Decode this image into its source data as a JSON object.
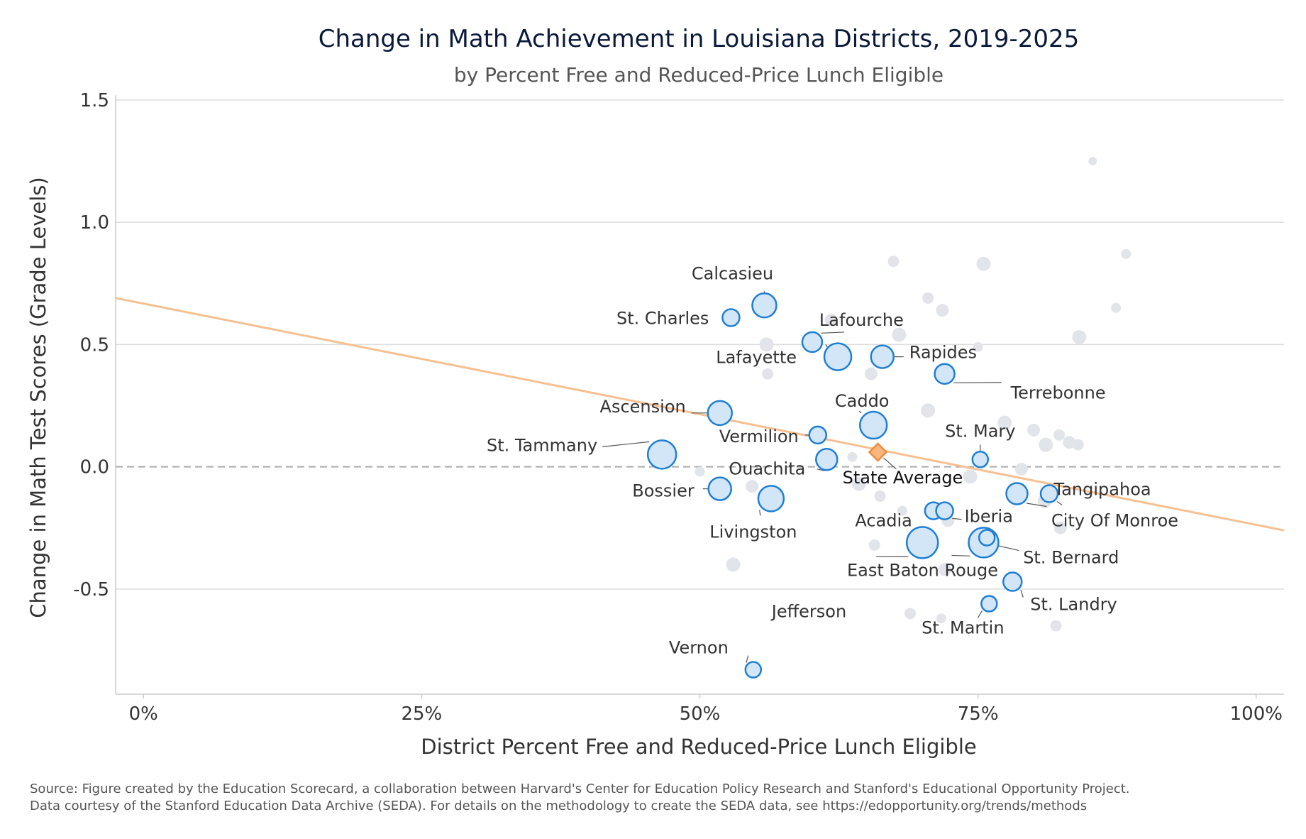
{
  "chart_data": {
    "type": "scatter",
    "title": "Change in Math Achievement in Louisiana Districts, 2019-2025",
    "subtitle": "by Percent Free and Reduced-Price Lunch Eligible",
    "xlabel": "District Percent Free and Reduced-Price Lunch Eligible",
    "ylabel": "Change in Math Test Scores (Grade Levels)",
    "xlim": [
      -0.025,
      1.025
    ],
    "ylim": [
      -0.93,
      1.52
    ],
    "x_ticks": [
      0,
      0.25,
      0.5,
      0.75,
      1.0
    ],
    "x_tick_labels": [
      "0%",
      "25%",
      "50%",
      "75%",
      "100%"
    ],
    "y_ticks": [
      1.5,
      1.0,
      0.5,
      0.0,
      -0.5
    ],
    "y_tick_labels": [
      "1.5",
      "1.0",
      "0.5",
      "0.0",
      "-0.5"
    ],
    "grid": "horizontal",
    "reference_line_y": 0,
    "trend_line": {
      "x": [
        -0.025,
        1.025
      ],
      "y": [
        0.69,
        -0.26
      ],
      "color": "#f6c092"
    },
    "colors": {
      "highlight_fill": "#d3e6f7",
      "highlight_stroke": "#1f7fd4",
      "background_point": "#e1e5ea",
      "state_marker": "#f08b3b"
    },
    "state_average": {
      "label": "State Average",
      "x": 0.66,
      "y": 0.06
    },
    "highlighted": [
      {
        "name": "Calcasieu",
        "x": 0.558,
        "y": 0.66,
        "size": 17
      },
      {
        "name": "St. Charles",
        "x": 0.528,
        "y": 0.61,
        "size": 12
      },
      {
        "name": "Lafourche",
        "x": 0.601,
        "y": 0.51,
        "size": 14
      },
      {
        "name": "Lafayette",
        "x": 0.624,
        "y": 0.45,
        "size": 19
      },
      {
        "name": "Rapides",
        "x": 0.664,
        "y": 0.45,
        "size": 16
      },
      {
        "name": "Terrebonne",
        "x": 0.72,
        "y": 0.38,
        "size": 14
      },
      {
        "name": "Ascension",
        "x": 0.518,
        "y": 0.22,
        "size": 17
      },
      {
        "name": "Caddo",
        "x": 0.656,
        "y": 0.17,
        "size": 19
      },
      {
        "name": "Vermilion",
        "x": 0.606,
        "y": 0.13,
        "size": 12
      },
      {
        "name": "St. Tammany",
        "x": 0.466,
        "y": 0.05,
        "size": 20
      },
      {
        "name": "St. Mary",
        "x": 0.752,
        "y": 0.03,
        "size": 11
      },
      {
        "name": "Ouachita",
        "x": 0.614,
        "y": 0.03,
        "size": 15
      },
      {
        "name": "Bossier",
        "x": 0.518,
        "y": -0.09,
        "size": 16
      },
      {
        "name": "Livingston",
        "x": 0.564,
        "y": -0.13,
        "size": 18
      },
      {
        "name": "Tangipahoa",
        "x": 0.785,
        "y": -0.11,
        "size": 15
      },
      {
        "name": "City Of Monroe",
        "x": 0.814,
        "y": -0.11,
        "size": 12
      },
      {
        "name": "Acadia",
        "x": 0.71,
        "y": -0.18,
        "size": 12
      },
      {
        "name": "Iberia",
        "x": 0.72,
        "y": -0.18,
        "size": 12
      },
      {
        "name": "East Baton Rouge",
        "x": 0.755,
        "y": -0.31,
        "size": 21
      },
      {
        "name": "St. Bernard",
        "x": 0.758,
        "y": -0.29,
        "size": 11
      },
      {
        "name": "Jefferson",
        "x": 0.7,
        "y": -0.31,
        "size": 22
      },
      {
        "name": "St. Landry",
        "x": 0.781,
        "y": -0.47,
        "size": 13
      },
      {
        "name": "St. Martin",
        "x": 0.76,
        "y": -0.56,
        "size": 11
      },
      {
        "name": "Vernon",
        "x": 0.548,
        "y": -0.83,
        "size": 11
      }
    ],
    "others": [
      {
        "x": 0.853,
        "y": 1.25,
        "size": 6
      },
      {
        "x": 0.883,
        "y": 0.87,
        "size": 7
      },
      {
        "x": 0.674,
        "y": 0.84,
        "size": 8
      },
      {
        "x": 0.755,
        "y": 0.83,
        "size": 10
      },
      {
        "x": 0.705,
        "y": 0.69,
        "size": 8
      },
      {
        "x": 0.718,
        "y": 0.64,
        "size": 9
      },
      {
        "x": 0.874,
        "y": 0.65,
        "size": 7
      },
      {
        "x": 0.618,
        "y": 0.6,
        "size": 9
      },
      {
        "x": 0.679,
        "y": 0.54,
        "size": 10
      },
      {
        "x": 0.841,
        "y": 0.53,
        "size": 10
      },
      {
        "x": 0.56,
        "y": 0.5,
        "size": 10
      },
      {
        "x": 0.75,
        "y": 0.49,
        "size": 7
      },
      {
        "x": 0.561,
        "y": 0.38,
        "size": 8
      },
      {
        "x": 0.654,
        "y": 0.38,
        "size": 9
      },
      {
        "x": 0.705,
        "y": 0.23,
        "size": 10
      },
      {
        "x": 0.774,
        "y": 0.18,
        "size": 10
      },
      {
        "x": 0.8,
        "y": 0.15,
        "size": 9
      },
      {
        "x": 0.823,
        "y": 0.13,
        "size": 8
      },
      {
        "x": 0.811,
        "y": 0.09,
        "size": 10
      },
      {
        "x": 0.832,
        "y": 0.1,
        "size": 9
      },
      {
        "x": 0.84,
        "y": 0.09,
        "size": 8
      },
      {
        "x": 0.5,
        "y": -0.02,
        "size": 7
      },
      {
        "x": 0.637,
        "y": 0.04,
        "size": 7
      },
      {
        "x": 0.789,
        "y": -0.01,
        "size": 9
      },
      {
        "x": 0.743,
        "y": -0.04,
        "size": 10
      },
      {
        "x": 0.547,
        "y": -0.08,
        "size": 9
      },
      {
        "x": 0.643,
        "y": -0.07,
        "size": 10
      },
      {
        "x": 0.662,
        "y": -0.12,
        "size": 8
      },
      {
        "x": 0.81,
        "y": -0.14,
        "size": 10
      },
      {
        "x": 0.723,
        "y": -0.22,
        "size": 9
      },
      {
        "x": 0.682,
        "y": -0.18,
        "size": 7
      },
      {
        "x": 0.824,
        "y": -0.25,
        "size": 9
      },
      {
        "x": 0.657,
        "y": -0.32,
        "size": 8
      },
      {
        "x": 0.53,
        "y": -0.4,
        "size": 10
      },
      {
        "x": 0.72,
        "y": -0.42,
        "size": 9
      },
      {
        "x": 0.689,
        "y": -0.6,
        "size": 8
      },
      {
        "x": 0.717,
        "y": -0.62,
        "size": 7
      },
      {
        "x": 0.82,
        "y": -0.65,
        "size": 8
      }
    ]
  },
  "source_line_1": "Source: Figure created by the Education Scorecard, a collaboration between Harvard's Center for Education Policy Research and Stanford's Educational Opportunity Project.",
  "source_line_2": "Data courtesy of the Stanford Education Data Archive (SEDA). For details on the methodology to create the SEDA data, see https://edopportunity.org/trends/methods"
}
